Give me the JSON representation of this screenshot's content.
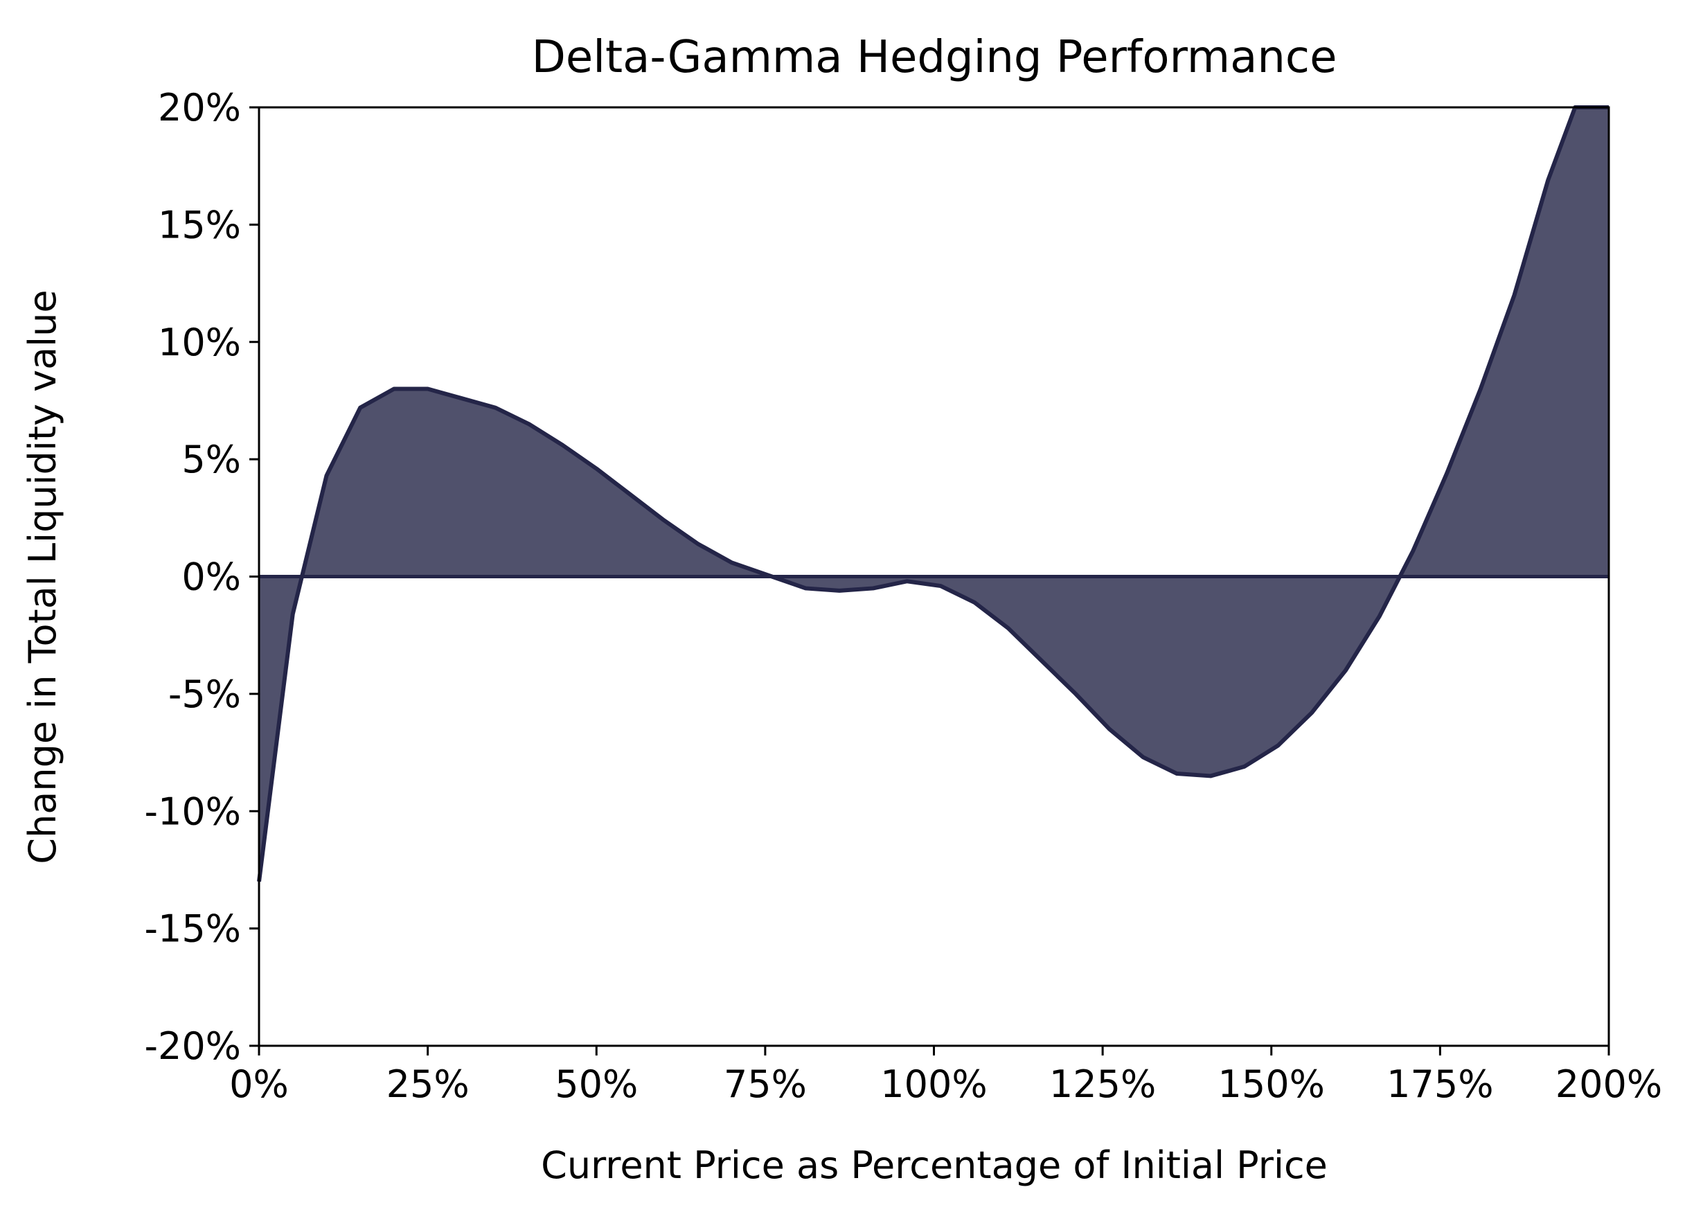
{
  "chart_data": {
    "type": "area",
    "title": "Delta-Gamma Hedging Performance",
    "xlabel": "Current Price as Percentage of Initial Price",
    "ylabel": "Change in Total Liquidity value",
    "xlim": [
      0,
      200
    ],
    "ylim": [
      -20,
      20
    ],
    "x_ticks": [
      0,
      25,
      50,
      75,
      100,
      125,
      150,
      175,
      200
    ],
    "x_tick_labels": [
      "0%",
      "25%",
      "50%",
      "75%",
      "100%",
      "125%",
      "150%",
      "175%",
      "200%"
    ],
    "y_ticks": [
      20,
      15,
      10,
      5,
      0,
      -5,
      -10,
      -15,
      -20
    ],
    "y_tick_labels": [
      "20%",
      "15%",
      "10%",
      "5%",
      "0%",
      "-5%",
      "-10%",
      "-15%",
      "-20%"
    ],
    "grid": false,
    "fill_baseline": 0,
    "colors": {
      "fill": "#50516c",
      "line": "#242548"
    },
    "series": [
      {
        "x": [
          0,
          5,
          10,
          15,
          20,
          25,
          30,
          35,
          40,
          45,
          50,
          55,
          60,
          65,
          70,
          76,
          81,
          86,
          91,
          96,
          101,
          106,
          111,
          116,
          121,
          126,
          131,
          136,
          141,
          146,
          151,
          156,
          161,
          166,
          171,
          176,
          181,
          186,
          191,
          195,
          200
        ],
        "values": [
          -13,
          -1.6,
          4.3,
          7.2,
          8.0,
          8.0,
          7.6,
          7.2,
          6.5,
          5.6,
          4.6,
          3.5,
          2.4,
          1.4,
          0.6,
          0,
          -0.5,
          -0.6,
          -0.5,
          -0.2,
          -0.4,
          -1.1,
          -2.2,
          -3.6,
          -5.0,
          -6.5,
          -7.7,
          -8.4,
          -8.5,
          -8.1,
          -7.2,
          -5.8,
          -4.0,
          -1.7,
          1.1,
          4.4,
          8.0,
          12.0,
          16.9,
          20.0,
          20.0
        ]
      }
    ]
  }
}
